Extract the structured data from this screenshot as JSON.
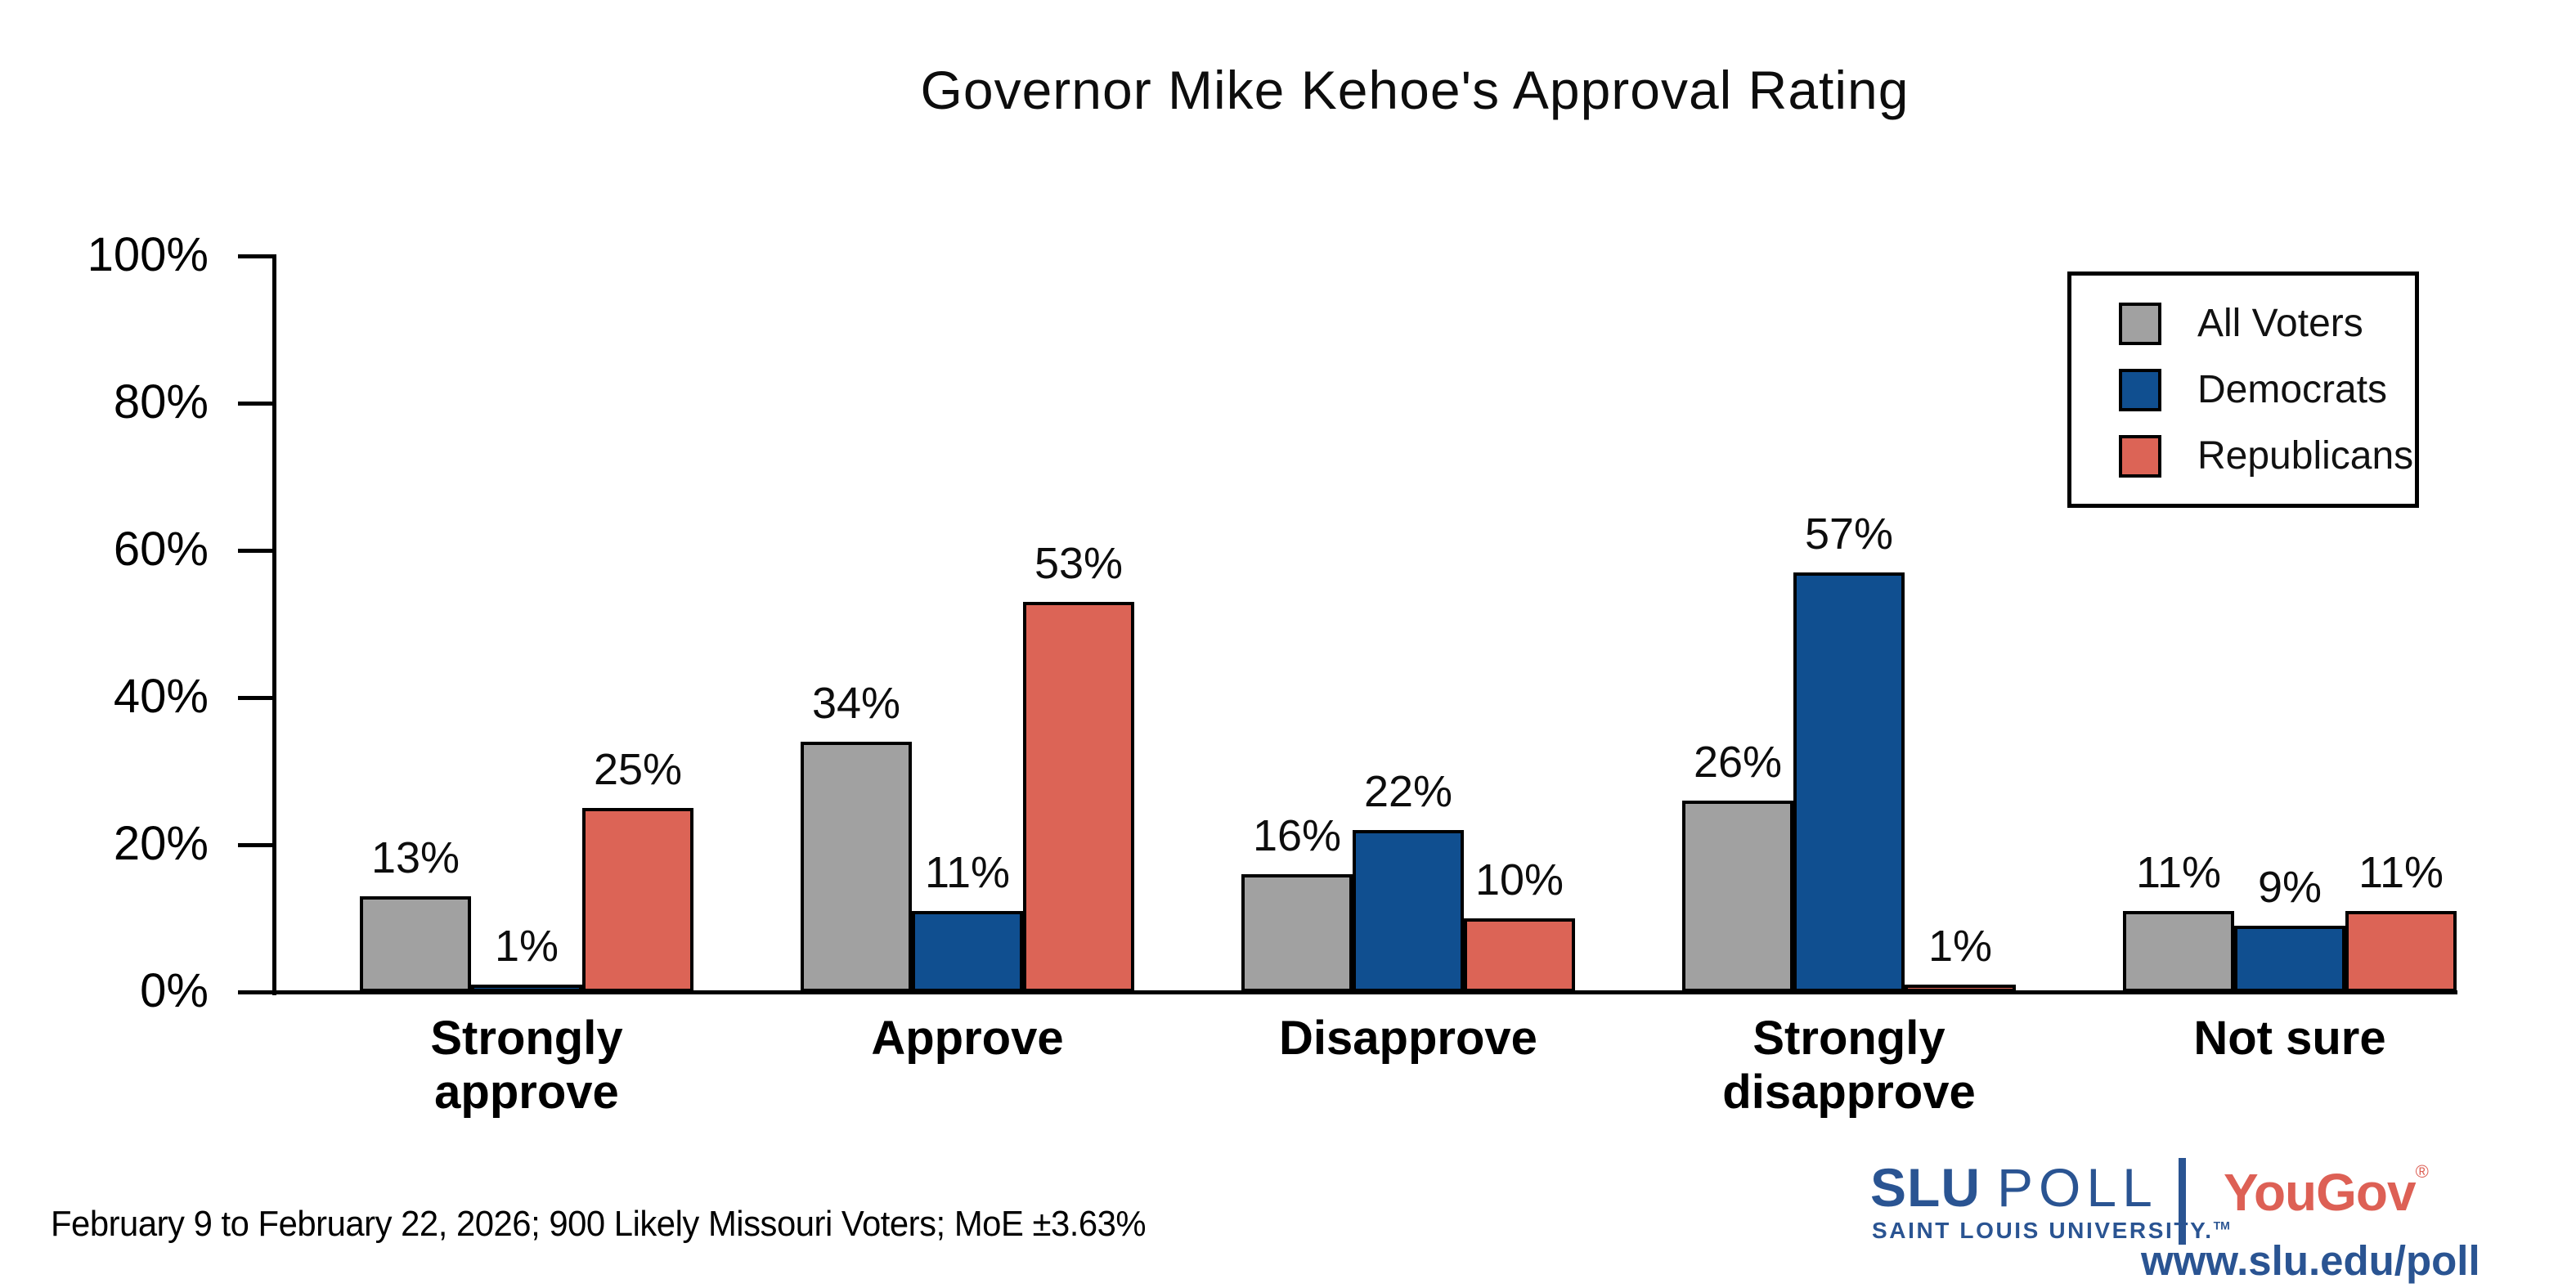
{
  "chart_data": {
    "type": "bar",
    "title": "Governor Mike Kehoe's Approval Rating",
    "categories": [
      "Strongly approve",
      "Approve",
      "Disapprove",
      "Strongly disapprove",
      "Not sure"
    ],
    "series": [
      {
        "name": "All Voters",
        "color": "#a1a1a1",
        "values": [
          13,
          34,
          16,
          26,
          11
        ]
      },
      {
        "name": "Democrats",
        "color": "#104f90",
        "values": [
          1,
          11,
          22,
          57,
          9
        ]
      },
      {
        "name": "Republicans",
        "color": "#dc6456",
        "values": [
          25,
          53,
          10,
          1,
          11
        ]
      }
    ],
    "ylim": [
      0,
      100
    ],
    "ytick_labels": [
      "0%",
      "20%",
      "40%",
      "60%",
      "80%",
      "100%"
    ],
    "bar_value_suffix": "%",
    "legend_position": "top-right",
    "grid": false,
    "axis_color": "#000000"
  },
  "footer": {
    "note": "February 9 to February 22, 2026; 900 Likely Missouri Voters; MoE ±3.63%"
  },
  "branding": {
    "slu_bold": "SLU",
    "slu_poll": "POLL",
    "slu_subtitle": "SAINT LOUIS UNIVERSITY.",
    "trademark": "TM",
    "yougov": "YouGov",
    "registered": "®",
    "url": "www.slu.edu/poll",
    "slu_blue": "#2a5492",
    "yougov_coral": "#dd6055"
  }
}
